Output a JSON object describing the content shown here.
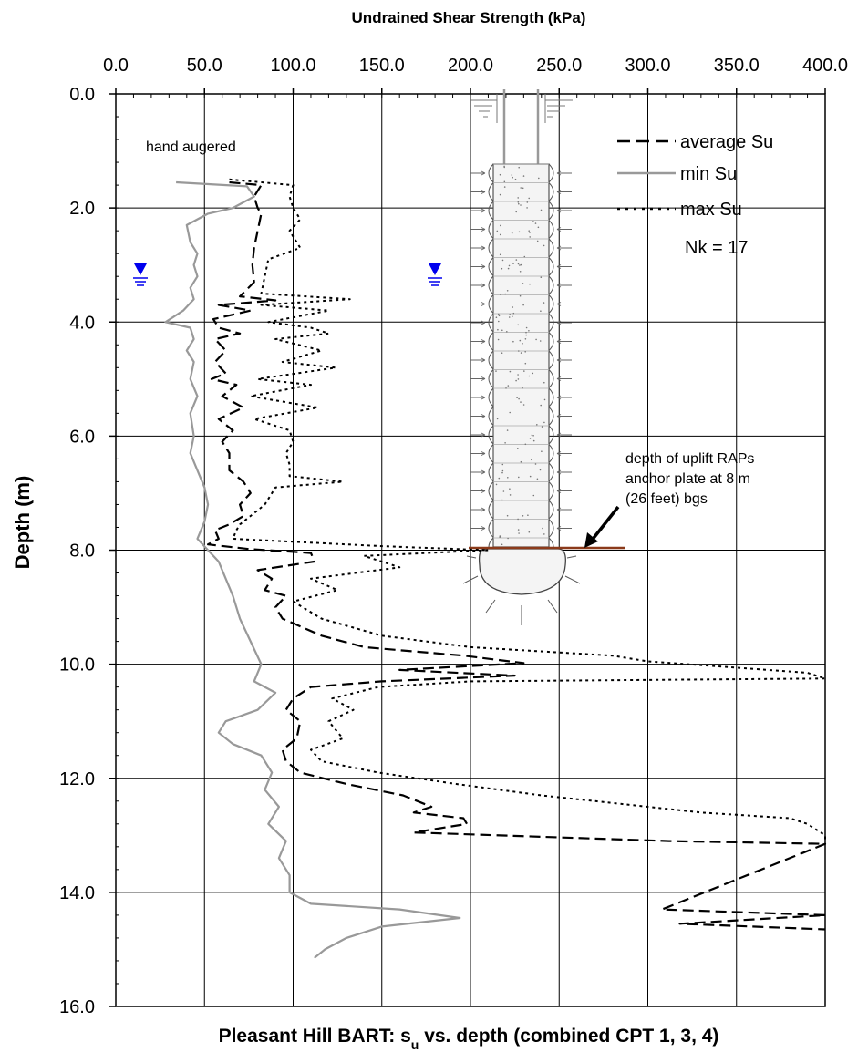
{
  "chart_data": {
    "type": "line",
    "x_axis_label": "Undrained Shear Strength (kPa)",
    "y_axis_label": "Depth (m)",
    "x_ticks": [
      "0.0",
      "50.0",
      "100.0",
      "150.0",
      "200.0",
      "250.0",
      "300.0",
      "350.0",
      "400.0"
    ],
    "y_ticks": [
      "0.0",
      "2.0",
      "4.0",
      "6.0",
      "8.0",
      "10.0",
      "12.0",
      "14.0",
      "16.0"
    ],
    "xlim": [
      0,
      400
    ],
    "ylim": [
      0,
      16
    ],
    "y_inverted": true,
    "x_axis_position": "top",
    "grid": true,
    "legend_position": "top-right",
    "legend_extra": "Nk = 17",
    "series": [
      {
        "name": "average Su",
        "style": "dashed",
        "color": "#000000",
        "points": [
          [
            64,
            1.55
          ],
          [
            82,
            1.6
          ],
          [
            78,
            1.8
          ],
          [
            80,
            2.0
          ],
          [
            82,
            2.1
          ],
          [
            80,
            2.4
          ],
          [
            78,
            2.7
          ],
          [
            77,
            3.0
          ],
          [
            78,
            3.3
          ],
          [
            70,
            3.55
          ],
          [
            90,
            3.62
          ],
          [
            58,
            3.7
          ],
          [
            76,
            3.8
          ],
          [
            55,
            3.95
          ],
          [
            58,
            4.1
          ],
          [
            70,
            4.2
          ],
          [
            56,
            4.3
          ],
          [
            62,
            4.5
          ],
          [
            56,
            4.7
          ],
          [
            62,
            4.9
          ],
          [
            54,
            5.0
          ],
          [
            68,
            5.1
          ],
          [
            60,
            5.3
          ],
          [
            72,
            5.5
          ],
          [
            58,
            5.7
          ],
          [
            66,
            5.9
          ],
          [
            60,
            6.1
          ],
          [
            64,
            6.3
          ],
          [
            64,
            6.6
          ],
          [
            72,
            6.8
          ],
          [
            76,
            7.0
          ],
          [
            70,
            7.2
          ],
          [
            72,
            7.4
          ],
          [
            64,
            7.55
          ],
          [
            56,
            7.65
          ],
          [
            58,
            7.8
          ],
          [
            52,
            7.9
          ],
          [
            75,
            7.98
          ],
          [
            110,
            8.05
          ],
          [
            112,
            8.2
          ],
          [
            80,
            8.35
          ],
          [
            88,
            8.5
          ],
          [
            84,
            8.7
          ],
          [
            96,
            8.8
          ],
          [
            90,
            9.0
          ],
          [
            94,
            9.2
          ],
          [
            116,
            9.5
          ],
          [
            140,
            9.7
          ],
          [
            196,
            9.85
          ],
          [
            230,
            9.98
          ],
          [
            160,
            10.1
          ],
          [
            225,
            10.2
          ],
          [
            150,
            10.3
          ],
          [
            110,
            10.4
          ],
          [
            100,
            10.6
          ],
          [
            96,
            10.8
          ],
          [
            104,
            11.0
          ],
          [
            102,
            11.3
          ],
          [
            94,
            11.5
          ],
          [
            96,
            11.7
          ],
          [
            104,
            11.9
          ],
          [
            130,
            12.1
          ],
          [
            162,
            12.3
          ],
          [
            178,
            12.5
          ],
          [
            168,
            12.6
          ],
          [
            196,
            12.7
          ],
          [
            198,
            12.8
          ],
          [
            168,
            12.95
          ],
          [
            312,
            13.1
          ],
          [
            400,
            13.15
          ],
          [
            308,
            14.3
          ],
          [
            400,
            14.4
          ],
          [
            318,
            14.55
          ],
          [
            400,
            14.65
          ]
        ]
      },
      {
        "name": "min Su",
        "style": "solid",
        "color": "#999999",
        "points": [
          [
            34,
            1.55
          ],
          [
            74,
            1.62
          ],
          [
            78,
            1.8
          ],
          [
            66,
            2.0
          ],
          [
            52,
            2.1
          ],
          [
            40,
            2.3
          ],
          [
            42,
            2.6
          ],
          [
            46,
            2.8
          ],
          [
            44,
            3.0
          ],
          [
            46,
            3.2
          ],
          [
            42,
            3.4
          ],
          [
            44,
            3.6
          ],
          [
            38,
            3.8
          ],
          [
            28,
            4.0
          ],
          [
            42,
            4.1
          ],
          [
            44,
            4.3
          ],
          [
            40,
            4.5
          ],
          [
            44,
            4.7
          ],
          [
            42,
            5.0
          ],
          [
            46,
            5.3
          ],
          [
            42,
            5.6
          ],
          [
            44,
            6.0
          ],
          [
            42,
            6.3
          ],
          [
            46,
            6.6
          ],
          [
            50,
            6.9
          ],
          [
            52,
            7.2
          ],
          [
            50,
            7.5
          ],
          [
            46,
            7.8
          ],
          [
            52,
            8.0
          ],
          [
            58,
            8.2
          ],
          [
            62,
            8.5
          ],
          [
            66,
            8.8
          ],
          [
            70,
            9.2
          ],
          [
            76,
            9.6
          ],
          [
            82,
            10.0
          ],
          [
            78,
            10.3
          ],
          [
            90,
            10.5
          ],
          [
            80,
            10.8
          ],
          [
            62,
            11.0
          ],
          [
            58,
            11.2
          ],
          [
            66,
            11.4
          ],
          [
            82,
            11.6
          ],
          [
            88,
            11.9
          ],
          [
            84,
            12.2
          ],
          [
            92,
            12.5
          ],
          [
            86,
            12.8
          ],
          [
            96,
            13.1
          ],
          [
            92,
            13.4
          ],
          [
            98,
            13.7
          ],
          [
            98,
            14.0
          ],
          [
            110,
            14.2
          ],
          [
            160,
            14.3
          ],
          [
            194,
            14.45
          ],
          [
            150,
            14.6
          ],
          [
            130,
            14.8
          ],
          [
            118,
            15.0
          ],
          [
            112,
            15.15
          ]
        ]
      },
      {
        "name": "max Su",
        "style": "dotted",
        "color": "#000000",
        "points": [
          [
            64,
            1.5
          ],
          [
            100,
            1.6
          ],
          [
            98,
            1.8
          ],
          [
            100,
            2.0
          ],
          [
            104,
            2.2
          ],
          [
            98,
            2.4
          ],
          [
            104,
            2.7
          ],
          [
            86,
            2.9
          ],
          [
            84,
            3.2
          ],
          [
            82,
            3.5
          ],
          [
            132,
            3.6
          ],
          [
            82,
            3.7
          ],
          [
            120,
            3.8
          ],
          [
            86,
            4.0
          ],
          [
            110,
            4.1
          ],
          [
            120,
            4.2
          ],
          [
            90,
            4.3
          ],
          [
            116,
            4.5
          ],
          [
            94,
            4.7
          ],
          [
            124,
            4.8
          ],
          [
            80,
            5.0
          ],
          [
            110,
            5.1
          ],
          [
            76,
            5.3
          ],
          [
            114,
            5.5
          ],
          [
            78,
            5.7
          ],
          [
            98,
            5.9
          ],
          [
            100,
            6.1
          ],
          [
            96,
            6.3
          ],
          [
            98,
            6.5
          ],
          [
            98,
            6.7
          ],
          [
            128,
            6.8
          ],
          [
            90,
            6.9
          ],
          [
            84,
            7.2
          ],
          [
            76,
            7.4
          ],
          [
            70,
            7.55
          ],
          [
            68,
            7.65
          ],
          [
            66,
            7.8
          ],
          [
            150,
            7.93
          ],
          [
            210,
            8.0
          ],
          [
            140,
            8.1
          ],
          [
            160,
            8.3
          ],
          [
            110,
            8.5
          ],
          [
            125,
            8.7
          ],
          [
            100,
            8.9
          ],
          [
            116,
            9.2
          ],
          [
            150,
            9.5
          ],
          [
            200,
            9.7
          ],
          [
            280,
            9.85
          ],
          [
            300,
            9.95
          ],
          [
            390,
            10.15
          ],
          [
            400,
            10.25
          ],
          [
            200,
            10.3
          ],
          [
            148,
            10.4
          ],
          [
            122,
            10.6
          ],
          [
            134,
            10.8
          ],
          [
            120,
            11.0
          ],
          [
            128,
            11.3
          ],
          [
            110,
            11.5
          ],
          [
            116,
            11.7
          ],
          [
            148,
            11.9
          ],
          [
            192,
            12.1
          ],
          [
            240,
            12.3
          ],
          [
            300,
            12.5
          ],
          [
            330,
            12.6
          ],
          [
            380,
            12.7
          ],
          [
            390,
            12.8
          ],
          [
            400,
            13.0
          ],
          [
            400,
            13.1
          ]
        ]
      }
    ],
    "annotations": {
      "hand_augered": "hand augered",
      "uplift_line1": "depth of uplift RAPs",
      "uplift_line2": "anchor plate at 8 m",
      "uplift_line3": "(26 feet) bgs"
    },
    "bottom_caption": {
      "prefix": "Pleasant Hill BART: s",
      "subscript": "u",
      "suffix": " vs. depth  (combined CPT 1, 3, 4)"
    }
  }
}
